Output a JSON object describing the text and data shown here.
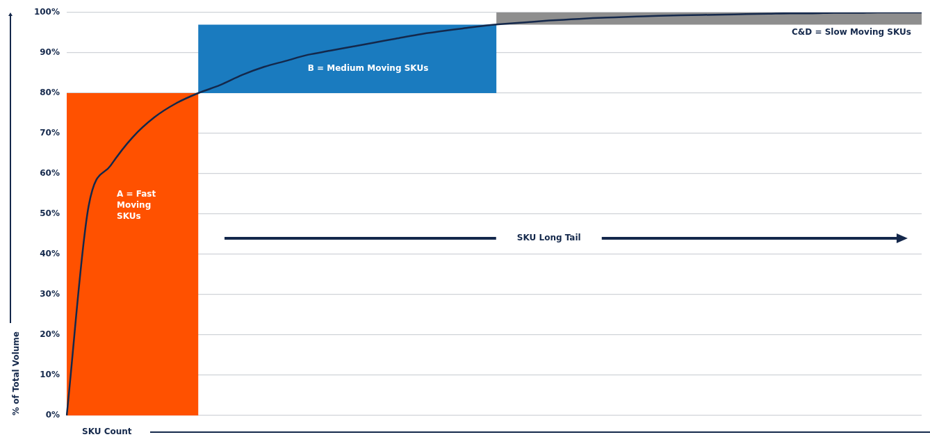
{
  "chart_data": {
    "type": "line",
    "categories": [
      null,
      null,
      null,
      null,
      null,
      null,
      null,
      null,
      null,
      null,
      null,
      null,
      null,
      null,
      null,
      null,
      null,
      null,
      null,
      null,
      null,
      null,
      null,
      null,
      null,
      null,
      null,
      null,
      null,
      null,
      null,
      null,
      null,
      null,
      null,
      null,
      null,
      null,
      null,
      null
    ],
    "series": [
      {
        "color": "#14284b",
        "values": [
          0,
          52,
          62,
          69,
          74,
          77.5,
          80,
          82,
          84.5,
          86.5,
          88,
          89.5,
          90.5,
          91.5,
          92.5,
          93.5,
          94.5,
          95.3,
          96,
          96.7,
          97.2,
          97.6,
          98,
          98.3,
          98.6,
          98.8,
          99,
          99.2,
          99.3,
          99.4,
          99.5,
          99.6,
          99.7,
          99.8,
          99.8,
          99.9,
          99.9,
          100,
          100,
          100
        ]
      }
    ],
    "bands": [
      {
        "axis": "y",
        "from": 0,
        "to": 80,
        "color": "#ff5100",
        "label": "A = Fast Moving SKUs"
      },
      {
        "axis": "y",
        "from": 80,
        "to": 97,
        "color": "#1a7bbf",
        "label": "B = Medium Moving SKUs"
      },
      {
        "axis": "y",
        "from": 97,
        "to": 100,
        "color": "#8e8e8e",
        "label": "C&D = Slow Moving SKUs"
      }
    ],
    "ylabel": "% of Total Volume",
    "xlabel": "SKU Count",
    "ylim": [
      0,
      100
    ],
    "yticks": [
      {
        "value": 0,
        "label": "0%"
      },
      {
        "value": 10,
        "label": "10%"
      },
      {
        "value": 20,
        "label": "20%"
      },
      {
        "value": 30,
        "label": "30%"
      },
      {
        "value": 40,
        "label": "40%"
      },
      {
        "value": 50,
        "label": "50%"
      },
      {
        "value": 60,
        "label": "60%"
      },
      {
        "value": 70,
        "label": "70%"
      },
      {
        "value": 80,
        "label": "80%"
      },
      {
        "value": 90,
        "label": "90%"
      },
      {
        "value": 100,
        "label": "100%"
      }
    ],
    "annotations": [
      "SKU Long Tail"
    ],
    "grid": "y",
    "legend": false,
    "tick_labels": "y",
    "marker": "none",
    "line_style": "solid"
  }
}
